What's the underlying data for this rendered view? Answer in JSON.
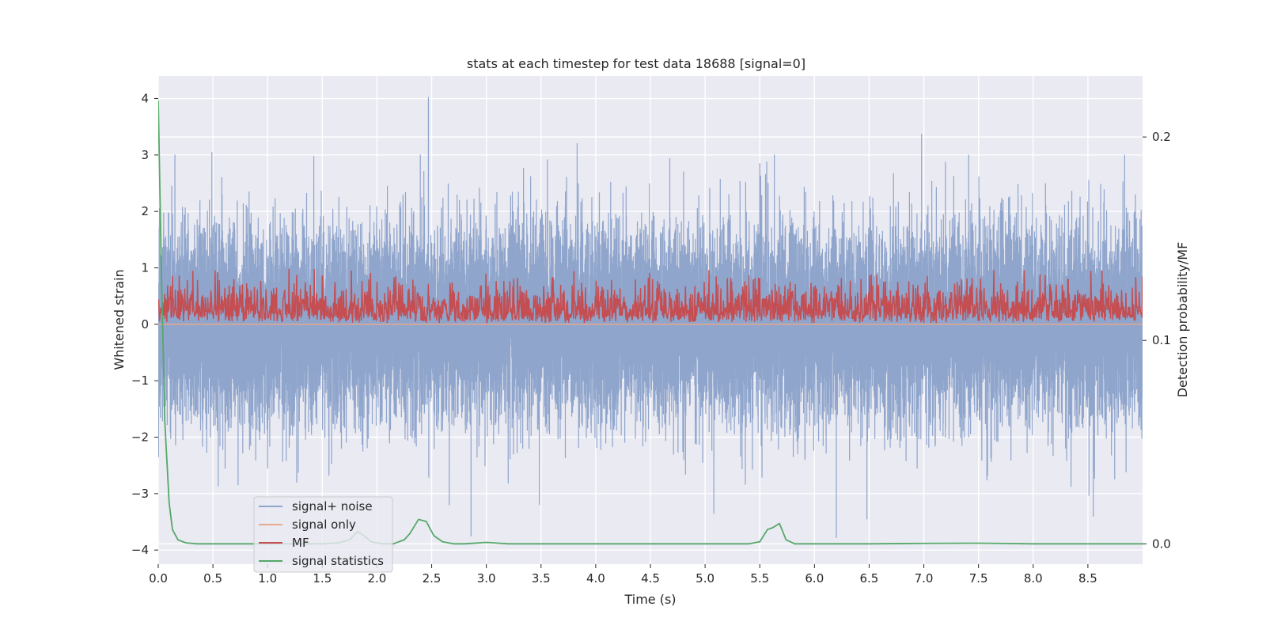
{
  "chart_data": {
    "type": "line",
    "title": "stats at each timestep for test data 18688 [signal=0]",
    "xlabel": "Time (s)",
    "ylabel": "Whitened strain",
    "ylabel_right": "Detection probability/MF",
    "xlim": [
      0.0,
      9.0
    ],
    "ylim": [
      -4.25,
      4.4
    ],
    "ylim_right": [
      -0.01,
      0.23
    ],
    "x_ticks": [
      "0.0",
      "0.5",
      "1.0",
      "1.5",
      "2.0",
      "2.5",
      "3.0",
      "3.5",
      "4.0",
      "4.5",
      "5.0",
      "5.5",
      "6.0",
      "6.5",
      "7.0",
      "7.5",
      "8.0",
      "8.5"
    ],
    "y_ticks": [
      "4",
      "3",
      "2",
      "1",
      "0",
      "−1",
      "−2",
      "−3",
      "−4"
    ],
    "y_ticks_right": [
      "0.2",
      "0.1",
      "0.0"
    ],
    "grid": true,
    "legend_position": "lower-left",
    "series": [
      {
        "name": "signal+ noise",
        "color": "#8fa5cc",
        "axis": "left",
        "sample_rate_hz": 2048,
        "amplitude_std": 0.85,
        "spikes": [
          [
            0.49,
            3.05
          ],
          [
            2.47,
            4.02
          ],
          [
            3.83,
            3.2
          ],
          [
            6.98,
            3.37
          ],
          [
            5.5,
            2.85
          ],
          [
            2.86,
            -3.75
          ],
          [
            6.2,
            -3.78
          ],
          [
            5.08,
            -3.35
          ],
          [
            6.48,
            -3.45
          ],
          [
            8.55,
            -3.4
          ]
        ]
      },
      {
        "name": "signal only",
        "color": "#e8a98a",
        "axis": "left",
        "x": [
          0.0,
          9.0
        ],
        "y": [
          0.0,
          0.0
        ]
      },
      {
        "name": "MF",
        "color": "#c44e52",
        "axis": "left",
        "sample_rate_hz": 256,
        "baseline": 0.05,
        "mean": 0.3,
        "max": 0.95
      },
      {
        "name": "signal statistics",
        "color": "#55a868",
        "axis": "right",
        "x": [
          0.0,
          0.03,
          0.06,
          0.1,
          0.13,
          0.18,
          0.25,
          0.35,
          0.5,
          1.0,
          1.5,
          1.65,
          1.75,
          1.82,
          1.88,
          1.95,
          2.05,
          2.15,
          2.25,
          2.3,
          2.38,
          2.45,
          2.52,
          2.6,
          2.7,
          2.8,
          3.0,
          3.2,
          3.5,
          4.0,
          4.5,
          5.0,
          5.4,
          5.5,
          5.57,
          5.62,
          5.68,
          5.74,
          5.82,
          6.0,
          6.5,
          7.0,
          7.5,
          8.0,
          8.5,
          9.0
        ],
        "y": [
          0.218,
          0.13,
          0.06,
          0.02,
          0.007,
          0.002,
          0.0005,
          0.0,
          0.0,
          0.0,
          0.0,
          0.0005,
          0.002,
          0.006,
          0.004,
          0.001,
          0.0,
          0.0,
          0.002,
          0.005,
          0.012,
          0.011,
          0.004,
          0.001,
          0.0,
          0.0,
          0.0007,
          0.0,
          0.0,
          0.0,
          0.0,
          0.0,
          0.0,
          0.001,
          0.007,
          0.008,
          0.01,
          0.002,
          0.0,
          0.0,
          0.0,
          0.0002,
          0.0003,
          0.0,
          0.0,
          0.0
        ]
      }
    ]
  }
}
